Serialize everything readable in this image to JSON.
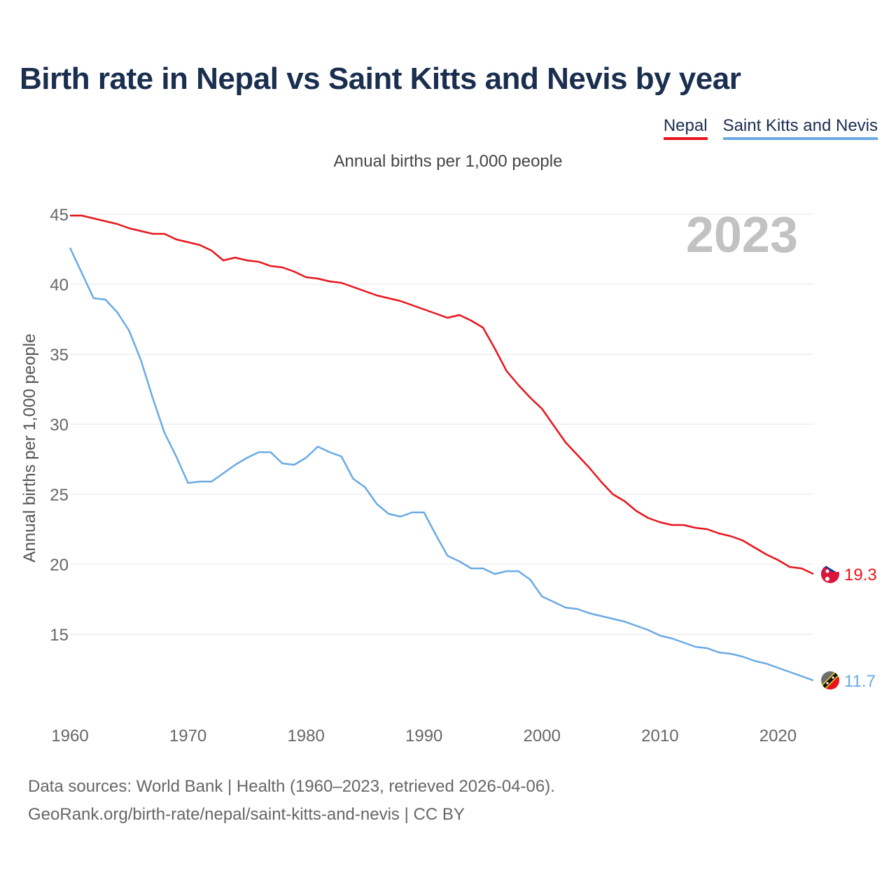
{
  "title": "Birth rate in Nepal vs Saint Kitts and Nevis by year",
  "subtitle": "Annual births per 1,000 people",
  "footer": {
    "line1": "Data sources: World Bank | Health (1960–2023, retrieved 2026-04-06).",
    "line2": "GeoRank.org/birth-rate/nepal/saint-kitts-and-nevis | CC BY"
  },
  "chart_data": {
    "type": "line",
    "title": "Birth rate in Nepal vs Saint Kitts and Nevis by year",
    "subtitle": "Annual births per 1,000 people",
    "xlabel": "",
    "ylabel": "Annual births per 1,000 people",
    "year_label": "2023",
    "xlim": [
      1960,
      2023
    ],
    "ylim": [
      10,
      45
    ],
    "x_ticks": [
      1960,
      1970,
      1980,
      1990,
      2000,
      2010,
      2020
    ],
    "y_ticks": [
      15,
      20,
      25,
      30,
      35,
      40,
      45
    ],
    "grid": true,
    "legend_position": "top-right",
    "x": [
      1960,
      1961,
      1962,
      1963,
      1964,
      1965,
      1966,
      1967,
      1968,
      1969,
      1970,
      1971,
      1972,
      1973,
      1974,
      1975,
      1976,
      1977,
      1978,
      1979,
      1980,
      1981,
      1982,
      1983,
      1984,
      1985,
      1986,
      1987,
      1988,
      1989,
      1990,
      1991,
      1992,
      1993,
      1994,
      1995,
      1996,
      1997,
      1998,
      1999,
      2000,
      2001,
      2002,
      2003,
      2004,
      2005,
      2006,
      2007,
      2008,
      2009,
      2010,
      2011,
      2012,
      2013,
      2014,
      2015,
      2016,
      2017,
      2018,
      2019,
      2020,
      2021,
      2022,
      2023
    ],
    "series": [
      {
        "name": "Nepal",
        "color": "#e8141c",
        "end_label": "19.3",
        "values": [
          44.9,
          44.9,
          44.7,
          44.5,
          44.3,
          44.0,
          43.8,
          43.6,
          43.6,
          43.2,
          43.0,
          42.8,
          42.4,
          41.7,
          41.9,
          41.7,
          41.6,
          41.3,
          41.2,
          40.9,
          40.5,
          40.4,
          40.2,
          40.1,
          39.8,
          39.5,
          39.2,
          39.0,
          38.8,
          38.5,
          38.2,
          37.9,
          37.6,
          37.8,
          37.4,
          36.9,
          35.4,
          33.8,
          32.8,
          31.9,
          31.1,
          29.9,
          28.7,
          27.8,
          26.9,
          25.9,
          25.0,
          24.5,
          23.8,
          23.3,
          23.0,
          22.8,
          22.8,
          22.6,
          22.5,
          22.2,
          22.0,
          21.7,
          21.2,
          20.7,
          20.3,
          19.8,
          19.7,
          19.3
        ]
      },
      {
        "name": "Saint Kitts and Nevis",
        "color": "#6aaae4",
        "end_label": "11.7",
        "values": [
          42.6,
          40.8,
          39.0,
          38.9,
          38.0,
          36.7,
          34.6,
          31.9,
          29.4,
          27.7,
          25.8,
          25.9,
          25.9,
          26.5,
          27.1,
          27.6,
          28.0,
          28.0,
          27.2,
          27.1,
          27.6,
          28.4,
          28.0,
          27.7,
          26.1,
          25.5,
          24.3,
          23.6,
          23.4,
          23.7,
          23.7,
          22.1,
          20.6,
          20.2,
          19.7,
          19.7,
          19.3,
          19.5,
          19.5,
          18.9,
          17.7,
          17.3,
          16.9,
          16.8,
          16.5,
          16.3,
          16.1,
          15.9,
          15.6,
          15.3,
          14.9,
          14.7,
          14.4,
          14.1,
          14.0,
          13.7,
          13.6,
          13.4,
          13.1,
          12.9,
          12.6,
          12.3,
          12.0,
          11.7
        ]
      }
    ]
  }
}
